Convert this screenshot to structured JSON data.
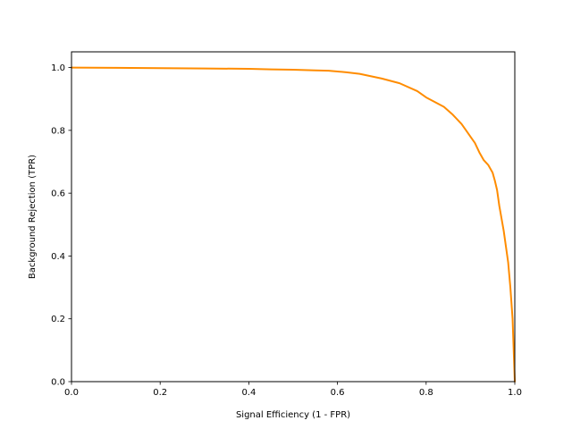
{
  "chart_data": {
    "type": "line",
    "title": "",
    "xlabel": "Signal Efficiency (1 - FPR)",
    "ylabel": "Background Rejection (TPR)",
    "xlim": [
      0.0,
      1.0
    ],
    "ylim": [
      0.0,
      1.05
    ],
    "xticks": [
      {
        "value": 0.0,
        "label": "0.0"
      },
      {
        "value": 0.2,
        "label": "0.2"
      },
      {
        "value": 0.4,
        "label": "0.4"
      },
      {
        "value": 0.6,
        "label": "0.6"
      },
      {
        "value": 0.8,
        "label": "0.8"
      },
      {
        "value": 1.0,
        "label": "1.0"
      }
    ],
    "yticks": [
      {
        "value": 0.0,
        "label": "0.0"
      },
      {
        "value": 0.2,
        "label": "0.2"
      },
      {
        "value": 0.4,
        "label": "0.4"
      },
      {
        "value": 0.6,
        "label": "0.6"
      },
      {
        "value": 0.8,
        "label": "0.8"
      },
      {
        "value": 1.0,
        "label": "1.0"
      }
    ],
    "grid": false,
    "legend": "none",
    "series": [
      {
        "color": "#ff8c00",
        "x": [
          0.0,
          0.1,
          0.2,
          0.3,
          0.4,
          0.45,
          0.5,
          0.55,
          0.58,
          0.62,
          0.65,
          0.7,
          0.74,
          0.78,
          0.8,
          0.82,
          0.84,
          0.86,
          0.88,
          0.89,
          0.9,
          0.91,
          0.92,
          0.93,
          0.94,
          0.95,
          0.955,
          0.96,
          0.965,
          0.97,
          0.975,
          0.98,
          0.985,
          0.99,
          0.995,
          0.998,
          1.0
        ],
        "y": [
          1.0,
          0.999,
          0.998,
          0.997,
          0.996,
          0.994,
          0.993,
          0.991,
          0.99,
          0.985,
          0.98,
          0.965,
          0.95,
          0.925,
          0.905,
          0.89,
          0.875,
          0.85,
          0.82,
          0.8,
          0.78,
          0.76,
          0.73,
          0.705,
          0.69,
          0.665,
          0.64,
          0.61,
          0.56,
          0.52,
          0.48,
          0.43,
          0.38,
          0.3,
          0.2,
          0.08,
          0.0
        ]
      }
    ]
  }
}
